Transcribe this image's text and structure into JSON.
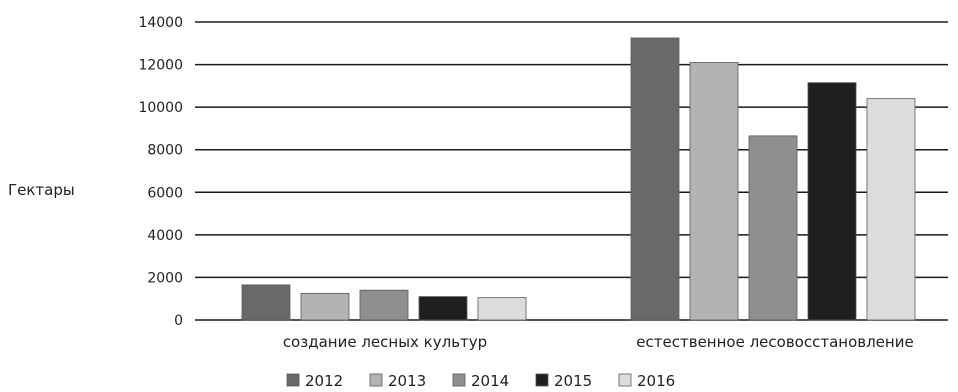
{
  "chart_data": {
    "type": "bar",
    "title": "",
    "xlabel": "",
    "ylabel": "Гектары",
    "ylim": [
      0,
      14000
    ],
    "yticks": [
      0,
      2000,
      4000,
      6000,
      8000,
      10000,
      12000,
      14000
    ],
    "grid": true,
    "legend_position": "bottom",
    "categories": [
      "создание лесных культур",
      "естественное лесовосстановление"
    ],
    "series": [
      {
        "name": "2012",
        "color": "#696969",
        "values": [
          1650,
          13250
        ]
      },
      {
        "name": "2013",
        "color": "#b3b3b3",
        "values": [
          1250,
          12100
        ]
      },
      {
        "name": "2014",
        "color": "#8f8f8f",
        "values": [
          1400,
          8650
        ]
      },
      {
        "name": "2015",
        "color": "#1f1f1f",
        "values": [
          1100,
          11150
        ]
      },
      {
        "name": "2016",
        "color": "#dcdcdc",
        "values": [
          1050,
          10400
        ]
      }
    ]
  }
}
